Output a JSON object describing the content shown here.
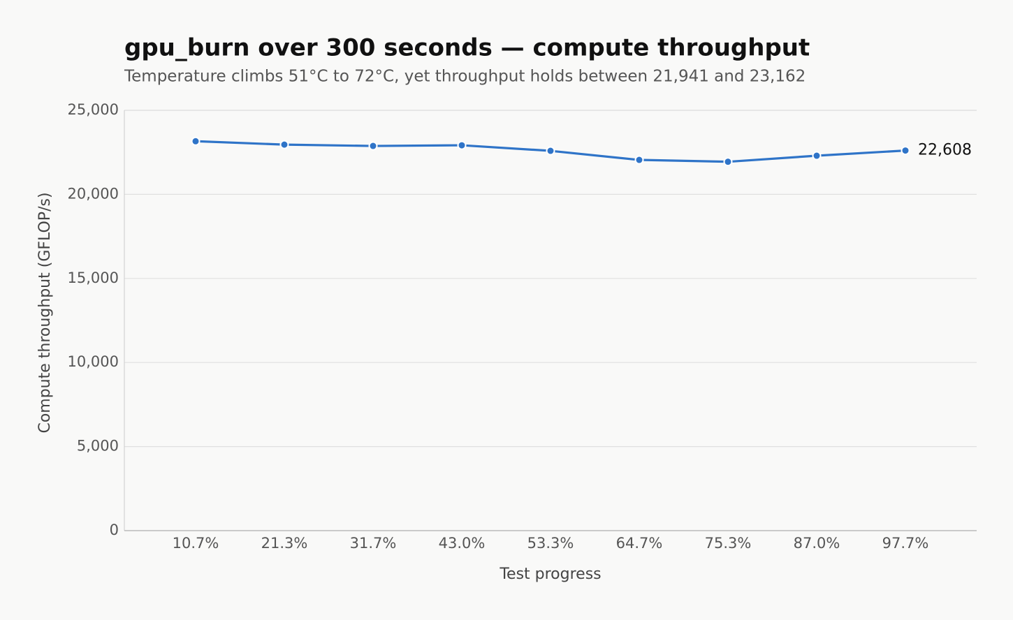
{
  "chart_data": {
    "type": "line",
    "title": "gpu_burn over 300 seconds — compute throughput",
    "subtitle": "Temperature climbs 51°C to 72°C, yet throughput holds between 21,941 and 23,162",
    "x_label": "Test progress",
    "y_label": "Compute throughput (GFLOP/s)",
    "categories": [
      "10.7%",
      "21.3%",
      "31.7%",
      "43.0%",
      "53.3%",
      "64.7%",
      "75.3%",
      "87.0%",
      "97.7%"
    ],
    "series": [
      {
        "name": "Compute throughput",
        "color": "#2f74c8",
        "values": [
          23162,
          22960,
          22880,
          22920,
          22590,
          22050,
          21941,
          22300,
          22608
        ],
        "value_labels": [
          null,
          null,
          null,
          null,
          null,
          null,
          null,
          null,
          "22,608"
        ]
      }
    ],
    "ylim": [
      0,
      25000
    ],
    "yticks": [
      0,
      {
        "value": 5000,
        "label": "5,000"
      },
      {
        "value": 10000,
        "label": "10,000"
      },
      {
        "value": 15000,
        "label": "15,000"
      },
      {
        "value": 20000,
        "label": "20,000"
      },
      {
        "value": 25000,
        "label": "25,000"
      }
    ],
    "grid": true
  }
}
